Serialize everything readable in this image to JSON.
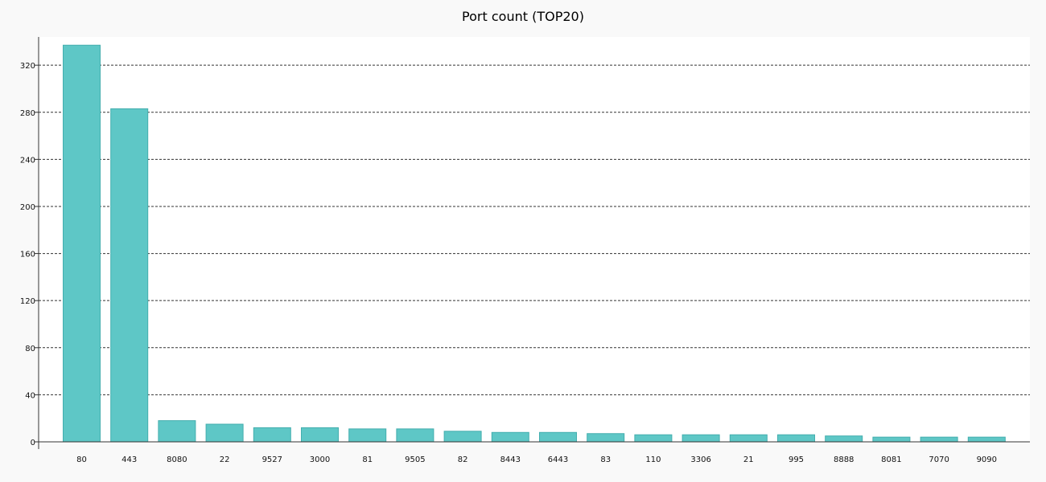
{
  "chart_data": {
    "type": "bar",
    "title": "Port count (TOP20)",
    "xlabel": "",
    "ylabel": "",
    "categories": [
      "80",
      "443",
      "8080",
      "22",
      "9527",
      "3000",
      "81",
      "9505",
      "82",
      "8443",
      "6443",
      "83",
      "110",
      "3306",
      "21",
      "995",
      "8888",
      "8081",
      "7070",
      "9090"
    ],
    "values": [
      337,
      283,
      18,
      15,
      12,
      12,
      11,
      11,
      9,
      8,
      8,
      7,
      6,
      6,
      6,
      6,
      5,
      4,
      4,
      4
    ],
    "ylim": [
      0,
      344
    ],
    "yticks": [
      "0",
      "40",
      "80",
      "120",
      "160",
      "200",
      "240",
      "280",
      "320"
    ],
    "grid": true,
    "colors": {
      "bar_fill": "#5ec7c6",
      "bar_stroke": "#44aeae",
      "grid": "#333333",
      "axis": "#333333",
      "plot_bg": "#ffffff",
      "page_bg": "#f9f9f9"
    }
  }
}
